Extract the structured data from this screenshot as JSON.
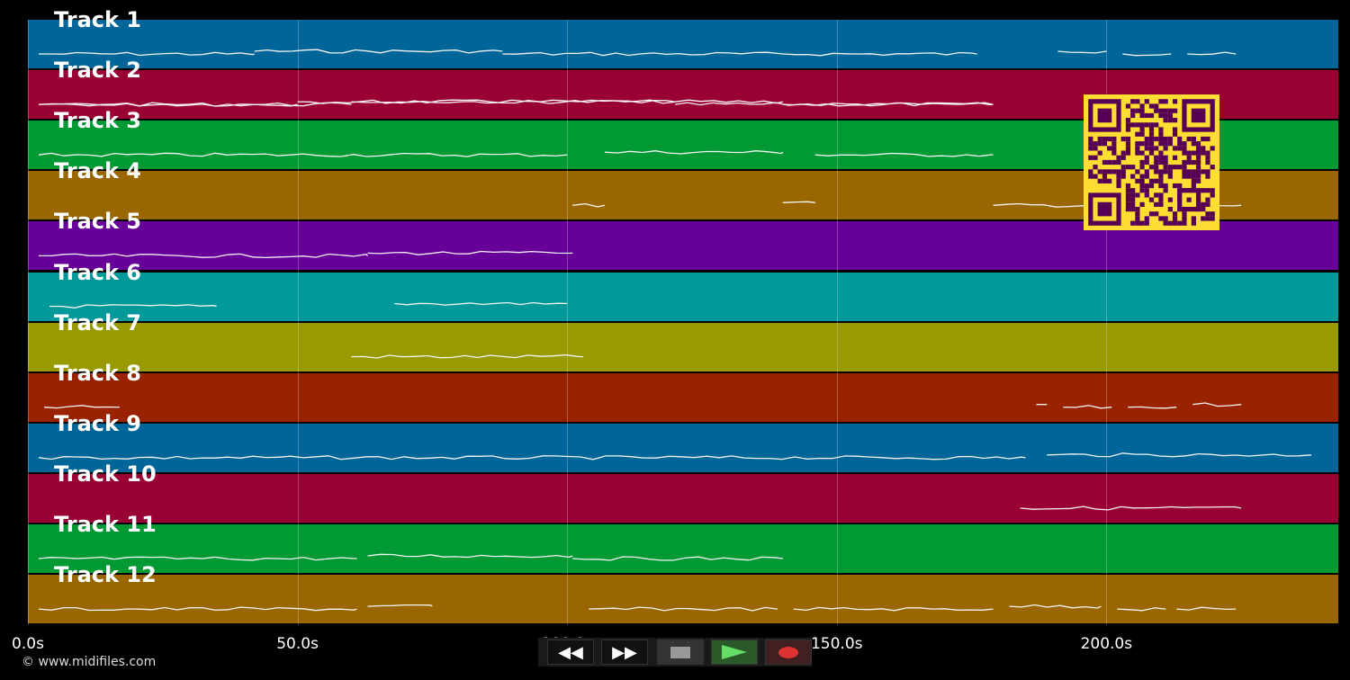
{
  "tracks": [
    {
      "label": "Track 1",
      "color": "#006699"
    },
    {
      "label": "Track 2",
      "color": "#990033"
    },
    {
      "label": "Track 3",
      "color": "#009933"
    },
    {
      "label": "Track 4",
      "color": "#996600"
    },
    {
      "label": "Track 5",
      "color": "#660099"
    },
    {
      "label": "Track 6",
      "color": "#009999"
    },
    {
      "label": "Track 7",
      "color": "#999900"
    },
    {
      "label": "Track 8",
      "color": "#992200"
    },
    {
      "label": "Track 9",
      "color": "#006699"
    },
    {
      "label": "Track 10",
      "color": "#990033"
    },
    {
      "label": "Track 11",
      "color": "#009933"
    },
    {
      "label": "Track 12",
      "color": "#996600"
    }
  ],
  "timeline": {
    "ticks": [
      "0.0s",
      "50.0s",
      "100.0s",
      "150.0s",
      "200.0s"
    ],
    "tick_seconds": [
      0,
      50,
      100,
      150,
      200
    ],
    "max_seconds": 243
  },
  "copyright": "© www.midifiles.com",
  "transport": {
    "rewind_icon": "rewind-icon",
    "fastforward_icon": "fast-forward-icon",
    "stop_icon": "stop-icon",
    "play_icon": "play-icon",
    "record_icon": "record-icon"
  },
  "qr_code": {
    "colors": {
      "fg": "#550055",
      "bg": "#ffdd33"
    }
  },
  "notes": [
    {
      "track": 0,
      "segments": [
        [
          2,
          42
        ],
        [
          42,
          88
        ],
        [
          88,
          140
        ],
        [
          140,
          176
        ],
        [
          191,
          200
        ],
        [
          203,
          212
        ],
        [
          215,
          224
        ]
      ]
    },
    {
      "track": 1,
      "segments": [
        [
          2,
          60
        ],
        [
          60,
          120
        ],
        [
          120,
          179
        ],
        [
          2,
          50
        ],
        [
          50,
          140
        ],
        [
          140,
          179
        ]
      ]
    },
    {
      "track": 2,
      "segments": [
        [
          2,
          100
        ],
        [
          107,
          140
        ],
        [
          146,
          179
        ]
      ]
    },
    {
      "track": 3,
      "segments": [
        [
          101,
          107
        ],
        [
          140,
          146
        ],
        [
          179,
          225
        ]
      ]
    },
    {
      "track": 4,
      "segments": [
        [
          2,
          63
        ],
        [
          63,
          101
        ]
      ]
    },
    {
      "track": 5,
      "segments": [
        [
          4,
          35
        ],
        [
          68,
          100
        ]
      ]
    },
    {
      "track": 6,
      "segments": [
        [
          60,
          103
        ]
      ]
    },
    {
      "track": 7,
      "segments": [
        [
          3,
          17
        ],
        [
          187,
          189
        ],
        [
          192,
          201
        ],
        [
          204,
          213
        ],
        [
          216,
          225
        ]
      ]
    },
    {
      "track": 8,
      "segments": [
        [
          2,
          185
        ],
        [
          189,
          238
        ]
      ]
    },
    {
      "track": 9,
      "segments": [
        [
          184,
          225
        ]
      ]
    },
    {
      "track": 10,
      "segments": [
        [
          2,
          61
        ],
        [
          63,
          101
        ],
        [
          101,
          140
        ]
      ]
    },
    {
      "track": 11,
      "segments": [
        [
          2,
          61
        ],
        [
          63,
          75
        ],
        [
          104,
          139
        ],
        [
          142,
          179
        ],
        [
          182,
          199
        ],
        [
          202,
          211
        ],
        [
          213,
          224
        ]
      ]
    }
  ]
}
